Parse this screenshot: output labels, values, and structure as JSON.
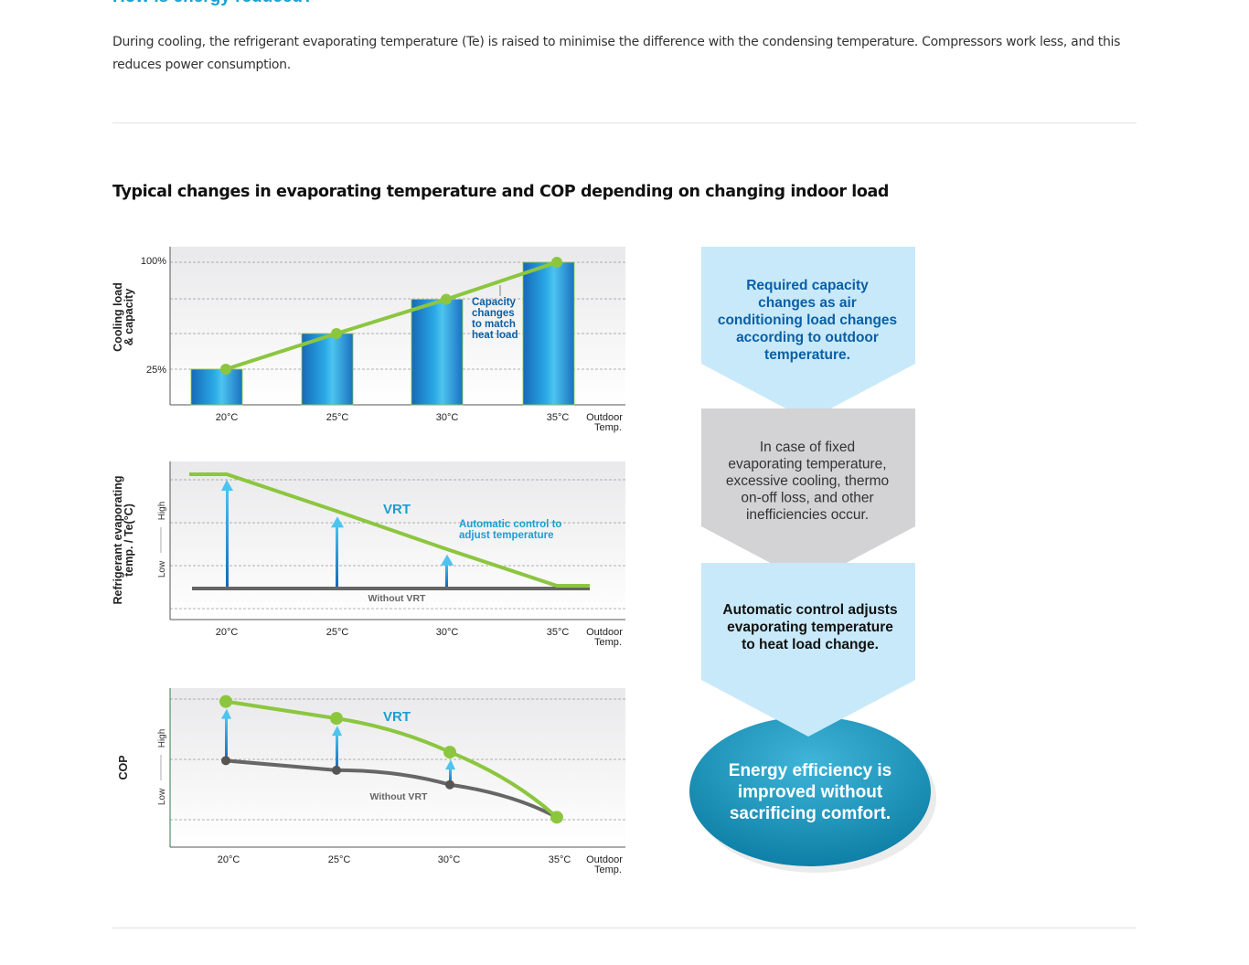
{
  "section_heading": "How is energy reduced?",
  "intro": "During cooling, the refrigerant evaporating temperature (Te) is raised to minimise the difference with the condensing temperature. Compressors work less, and this reduces power consumption.",
  "figure_title": "Typical changes in evaporating temperature and COP depending on changing indoor load",
  "colors": {
    "heading": "#1a9fd0",
    "green": "#8cc63f",
    "bar_blue": "#1e88d0",
    "grey": "#666666",
    "flow_blue": "#c8e9f9",
    "flow_grey": "#d3d3d5",
    "ellipse": "#1591b8",
    "flow_text_blue": "#0b5fa5"
  },
  "chart_data": [
    {
      "type": "bar",
      "title": "",
      "ylabel_lines": [
        "Cooling load",
        "& capacity"
      ],
      "categories": [
        "20°C",
        "25°C",
        "30°C",
        "35°C"
      ],
      "xlabel_lines": [
        "Outdoor",
        "Temp."
      ],
      "yticks": [
        "100%",
        "25%"
      ],
      "ylim": [
        0,
        100
      ],
      "values": [
        25,
        50,
        74,
        100
      ],
      "line_values": [
        25,
        50,
        74,
        100
      ],
      "annotation_lines": [
        "Capacity",
        "changes",
        "to match",
        "heat load"
      ],
      "grid": true
    },
    {
      "type": "line",
      "title": "",
      "ylabel_lines": [
        "Refrigerant evaporating",
        "temp. / Te(°C)"
      ],
      "y_scale_low": "Low",
      "y_scale_high": "High",
      "categories": [
        "20°C",
        "25°C",
        "30°C",
        "35°C"
      ],
      "xlabel_lines": [
        "Outdoor",
        "Temp."
      ],
      "series": [
        {
          "name": "VRT",
          "values": [
            1.0,
            0.67,
            0.33,
            0.0
          ]
        },
        {
          "name": "Without VRT",
          "values": [
            0,
            0,
            0,
            0
          ]
        }
      ],
      "annotation_lines": [
        "Automatic control to",
        "adjust temperature"
      ],
      "grid": true
    },
    {
      "type": "line",
      "title": "",
      "ylabel_lines": [
        "COP"
      ],
      "y_scale_low": "Low",
      "y_scale_high": "High",
      "categories": [
        "20°C",
        "25°C",
        "30°C",
        "35°C"
      ],
      "xlabel_lines": [
        "Outdoor",
        "Temp."
      ],
      "series": [
        {
          "name": "VRT",
          "values": [
            0.98,
            0.84,
            0.56,
            0.02
          ]
        },
        {
          "name": "Without VRT",
          "values": [
            0.49,
            0.41,
            0.29,
            0.02
          ]
        }
      ],
      "grid": true
    }
  ],
  "flow": [
    {
      "lines": [
        "Required capacity",
        "changes as air",
        "conditioning load changes",
        "according to outdoor",
        "temperature."
      ]
    },
    {
      "lines": [
        "In case of fixed",
        "evaporating temperature,",
        "excessive cooling, thermo",
        "on-off loss, and other",
        "inefficiencies occur."
      ]
    },
    {
      "lines": [
        "Automatic control adjusts",
        "evaporating temperature",
        "to heat load change."
      ]
    },
    {
      "lines": [
        "Energy efficiency is",
        "improved without",
        "sacrificing comfort."
      ]
    }
  ]
}
